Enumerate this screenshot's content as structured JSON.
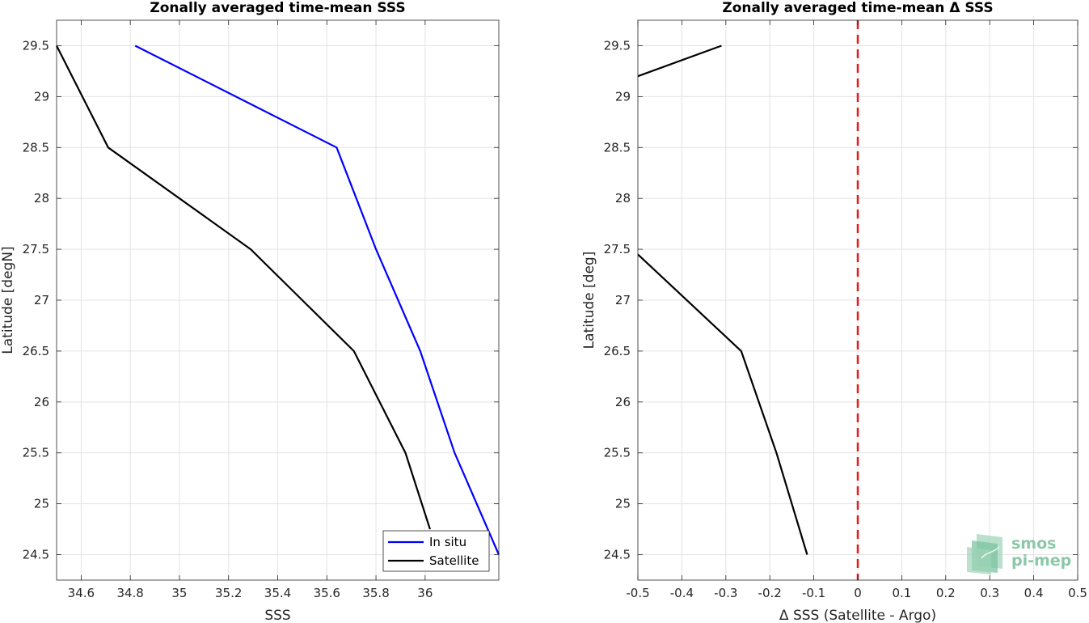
{
  "logo": {
    "line1": "smos",
    "line2": "pi-mep"
  },
  "chart_data": [
    {
      "type": "line",
      "title": "Zonally averaged time-mean SSS",
      "xlabel": "SSS",
      "ylabel": "Latitude [degN]",
      "xlim": [
        34.5,
        36.3
      ],
      "ylim": [
        24.25,
        29.75
      ],
      "xticks": [
        34.6,
        34.8,
        35,
        35.2,
        35.4,
        35.6,
        35.8,
        36
      ],
      "xtick_labels": [
        "34.6",
        "34.8",
        "35",
        "35.2",
        "35.4",
        "35.6",
        "35.8",
        "36"
      ],
      "yticks": [
        24.5,
        25,
        25.5,
        26,
        26.5,
        27,
        27.5,
        28,
        28.5,
        29,
        29.5
      ],
      "ytick_labels": [
        "24.5",
        "25",
        "25.5",
        "26",
        "26.5",
        "27",
        "27.5",
        "28",
        "28.5",
        "29",
        "29.5"
      ],
      "grid": true,
      "legend_position": "bottom-right",
      "series": [
        {
          "name": "In situ",
          "color": "#0000ff",
          "x": [
            34.82,
            35.64,
            35.8,
            35.98,
            36.12,
            36.3
          ],
          "y": [
            29.5,
            28.5,
            27.5,
            26.5,
            25.5,
            24.5
          ]
        },
        {
          "name": "Satellite",
          "color": "#000000",
          "x": [
            34.5,
            34.71,
            35.29,
            35.71,
            35.92,
            36.02
          ],
          "y": [
            29.5,
            28.5,
            27.5,
            26.5,
            25.5,
            24.75
          ]
        }
      ]
    },
    {
      "type": "line",
      "title": "Zonally averaged time-mean Δ SSS",
      "xlabel": "Δ SSS (Satellite - Argo)",
      "ylabel": "Latitude [deg]",
      "xlim": [
        -0.5,
        0.5
      ],
      "ylim": [
        24.25,
        29.75
      ],
      "xticks": [
        -0.5,
        -0.4,
        -0.3,
        -0.2,
        -0.1,
        0,
        0.1,
        0.2,
        0.3,
        0.4,
        0.5
      ],
      "xtick_labels": [
        "-0.5",
        "-0.4",
        "-0.3",
        "-0.2",
        "-0.1",
        "0",
        "0.1",
        "0.2",
        "0.3",
        "0.4",
        "0.5"
      ],
      "yticks": [
        24.5,
        25,
        25.5,
        26,
        26.5,
        27,
        27.5,
        28,
        28.5,
        29,
        29.5
      ],
      "ytick_labels": [
        "24.5",
        "25",
        "25.5",
        "26",
        "26.5",
        "27",
        "27.5",
        "28",
        "28.5",
        "29",
        "29.5"
      ],
      "grid": true,
      "reference_line": {
        "x": 0,
        "color": "#e41a1c",
        "style": "dashed"
      },
      "series": [
        {
          "color": "#000000",
          "x": [
            -0.5,
            -0.31
          ],
          "y": [
            29.2,
            29.5
          ]
        },
        {
          "color": "#000000",
          "x": [
            -0.5,
            -0.265,
            -0.185,
            -0.115
          ],
          "y": [
            27.45,
            26.5,
            25.5,
            24.5
          ]
        }
      ]
    }
  ]
}
